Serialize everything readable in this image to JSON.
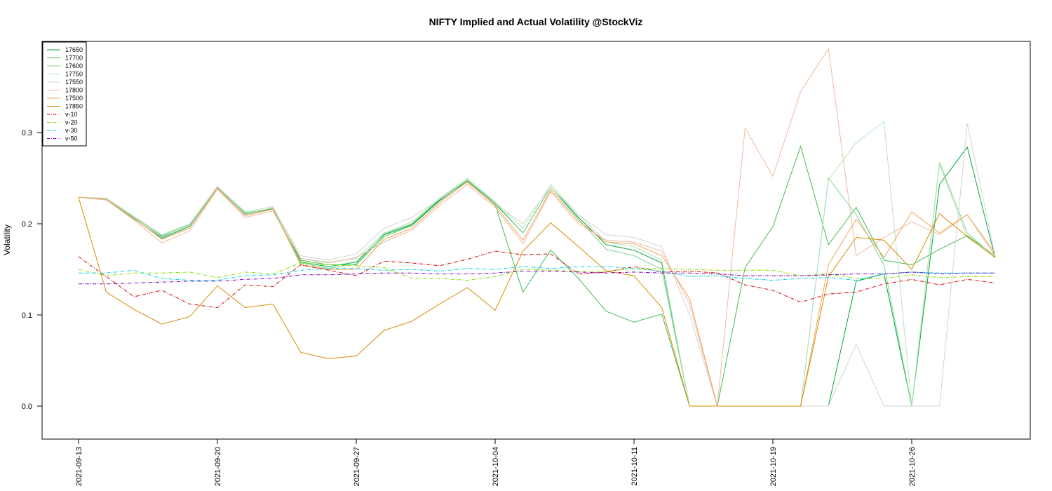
{
  "chart_data": {
    "type": "line",
    "title": "NIFTY Implied and Actual Volatility @StockViz",
    "xlabel": "",
    "ylabel": "Volatility",
    "ylim": [
      -0.036,
      0.4
    ],
    "yticks": [
      0.0,
      0.1,
      0.2,
      0.3
    ],
    "ytick_labels": [
      "0.0",
      "0.1",
      "0.2",
      "0.3"
    ],
    "x_tick_labels": [
      "2021-09-13",
      "2021-09-20",
      "2021-09-27",
      "2021-10-04",
      "2021-10-11",
      "2021-10-19",
      "2021-10-26"
    ],
    "x_tick_index": [
      0,
      5,
      10,
      15,
      20,
      25,
      30
    ],
    "x": [
      "2021-09-13",
      "2021-09-14",
      "2021-09-15",
      "2021-09-16",
      "2021-09-17",
      "2021-09-20",
      "2021-09-21",
      "2021-09-22",
      "2021-09-23",
      "2021-09-24",
      "2021-09-27",
      "2021-09-28",
      "2021-09-29",
      "2021-09-30",
      "2021-10-01",
      "2021-10-04",
      "2021-10-05",
      "2021-10-06",
      "2021-10-07",
      "2021-10-08",
      "2021-10-11",
      "2021-10-12",
      "2021-10-13",
      "2021-10-14",
      "2021-10-18",
      "2021-10-19",
      "2021-10-20",
      "2021-10-21",
      "2021-10-22",
      "2021-10-25",
      "2021-10-26",
      "2021-10-27",
      "2021-10-28",
      "2021-10-29"
    ],
    "grid": false,
    "legend_position": "top-left",
    "series": [
      {
        "name": "17650",
        "color": "#00a83a",
        "dash": "",
        "values": [
          0.229,
          0.227,
          0.206,
          0.184,
          0.197,
          0.24,
          0.21,
          0.217,
          0.158,
          0.153,
          0.158,
          0.188,
          0.199,
          0.226,
          0.248,
          0.222,
          0.19,
          0.24,
          0.207,
          0.177,
          0.171,
          0.157,
          0.0,
          0.0,
          0.0,
          0.0,
          0.0,
          0.0,
          0.137,
          0.145,
          0.0,
          0.243,
          0.284,
          0.163
        ]
      },
      {
        "name": "17700",
        "color": "#3dbd55",
        "dash": "",
        "values": [
          0.229,
          0.227,
          0.205,
          0.186,
          0.197,
          0.24,
          0.211,
          0.216,
          0.16,
          0.155,
          0.155,
          0.186,
          0.198,
          0.225,
          0.247,
          0.221,
          0.125,
          0.171,
          0.14,
          0.104,
          0.092,
          0.101,
          0.0,
          0.0,
          0.152,
          0.197,
          0.285,
          0.177,
          0.218,
          0.16,
          0.155,
          0.172,
          0.187,
          0.165
        ]
      },
      {
        "name": "17600",
        "color": "#7ed38c",
        "dash": "",
        "values": [
          0.229,
          0.228,
          0.207,
          0.187,
          0.199,
          0.24,
          0.212,
          0.217,
          0.157,
          0.151,
          0.156,
          0.189,
          0.2,
          0.227,
          0.248,
          0.223,
          0.19,
          0.24,
          0.205,
          0.172,
          0.165,
          0.15,
          0.0,
          0.0,
          0.0,
          0.0,
          0.0,
          0.25,
          0.21,
          0.155,
          0.0,
          0.267,
          0.19,
          0.163
        ]
      },
      {
        "name": "17750",
        "color": "#b6e4bc",
        "dash": "",
        "values": [
          0.229,
          0.228,
          0.208,
          0.188,
          0.2,
          0.241,
          0.213,
          0.219,
          0.162,
          0.158,
          0.162,
          0.19,
          0.202,
          0.228,
          0.25,
          0.224,
          0.195,
          0.243,
          0.21,
          0.18,
          0.175,
          0.16,
          0.0,
          0.0,
          0.0,
          0.0,
          0.0,
          0.248,
          0.289,
          0.312,
          0.0,
          0.265,
          0.185,
          0.165
        ]
      },
      {
        "name": "17550",
        "color": "#d4d4d4",
        "dash": "",
        "values": [
          0.229,
          0.227,
          0.206,
          0.185,
          0.198,
          0.241,
          0.21,
          0.218,
          0.165,
          0.16,
          0.167,
          0.195,
          0.207,
          0.227,
          0.245,
          0.222,
          0.2,
          0.24,
          0.21,
          0.188,
          0.185,
          0.175,
          0.1,
          0.0,
          0.0,
          0.0,
          0.0,
          0.0,
          0.068,
          0.0,
          0.0,
          0.0,
          0.31,
          0.165
        ]
      },
      {
        "name": "17800",
        "color": "#efb9a0",
        "dash": "",
        "values": [
          0.229,
          0.226,
          0.204,
          0.179,
          0.192,
          0.238,
          0.207,
          0.214,
          0.162,
          0.157,
          0.163,
          0.18,
          0.193,
          0.22,
          0.243,
          0.218,
          0.178,
          0.235,
          0.2,
          0.182,
          0.18,
          0.17,
          0.112,
          0.0,
          0.305,
          0.252,
          0.345,
          0.392,
          0.165,
          0.185,
          0.202,
          0.188,
          0.21,
          0.168
        ]
      },
      {
        "name": "17500",
        "color": "#f2a456",
        "dash": "",
        "values": [
          0.229,
          0.227,
          0.206,
          0.183,
          0.195,
          0.239,
          0.209,
          0.216,
          0.155,
          0.15,
          0.15,
          0.183,
          0.195,
          0.223,
          0.246,
          0.22,
          0.182,
          0.237,
          0.203,
          0.18,
          0.178,
          0.165,
          0.118,
          0.0,
          0.0,
          0.0,
          0.0,
          0.155,
          0.205,
          0.163,
          0.213,
          0.19,
          0.21,
          0.165
        ]
      },
      {
        "name": "17850",
        "color": "#d98a00",
        "dash": "",
        "values": [
          0.229,
          0.125,
          0.106,
          0.09,
          0.098,
          0.132,
          0.108,
          0.112,
          0.059,
          0.052,
          0.055,
          0.083,
          0.093,
          0.112,
          0.13,
          0.105,
          0.17,
          0.201,
          0.175,
          0.148,
          0.143,
          0.108,
          0.0,
          0.0,
          0.0,
          0.0,
          0.0,
          0.142,
          0.185,
          0.182,
          0.15,
          0.211,
          0.186,
          0.163
        ]
      },
      {
        "name": "v-10",
        "color": "#d40000",
        "dash": "5,2,1,2",
        "values": [
          0.164,
          0.142,
          0.12,
          0.127,
          0.112,
          0.108,
          0.133,
          0.131,
          0.155,
          0.149,
          0.143,
          0.159,
          0.157,
          0.154,
          0.161,
          0.17,
          0.166,
          0.167,
          0.145,
          0.147,
          0.153,
          0.147,
          0.148,
          0.146,
          0.133,
          0.127,
          0.114,
          0.123,
          0.125,
          0.134,
          0.139,
          0.133,
          0.139,
          0.135
        ]
      },
      {
        "name": "v-20",
        "color": "#86e000",
        "dash": "5,2,1,2",
        "values": [
          0.15,
          0.143,
          0.146,
          0.146,
          0.147,
          0.141,
          0.147,
          0.145,
          0.157,
          0.155,
          0.154,
          0.152,
          0.14,
          0.14,
          0.138,
          0.142,
          0.15,
          0.149,
          0.148,
          0.148,
          0.151,
          0.151,
          0.15,
          0.149,
          0.149,
          0.149,
          0.143,
          0.145,
          0.14,
          0.14,
          0.144,
          0.141,
          0.142,
          0.142
        ]
      },
      {
        "name": "v-30",
        "color": "#00d0e0",
        "dash": "5,2,1,2",
        "values": [
          0.146,
          0.146,
          0.149,
          0.14,
          0.138,
          0.138,
          0.143,
          0.144,
          0.149,
          0.151,
          0.151,
          0.149,
          0.15,
          0.148,
          0.151,
          0.15,
          0.153,
          0.151,
          0.153,
          0.153,
          0.151,
          0.148,
          0.142,
          0.143,
          0.14,
          0.138,
          0.14,
          0.141,
          0.138,
          0.145,
          0.147,
          0.146,
          0.146,
          0.146
        ]
      },
      {
        "name": "v-50",
        "color": "#7a00b0",
        "dash": "5,2,1,2",
        "values": [
          0.134,
          0.134,
          0.135,
          0.136,
          0.137,
          0.137,
          0.139,
          0.14,
          0.144,
          0.144,
          0.145,
          0.146,
          0.146,
          0.145,
          0.145,
          0.146,
          0.148,
          0.148,
          0.147,
          0.146,
          0.147,
          0.146,
          0.146,
          0.145,
          0.143,
          0.143,
          0.143,
          0.144,
          0.145,
          0.145,
          0.147,
          0.145,
          0.146,
          0.146
        ]
      }
    ]
  }
}
